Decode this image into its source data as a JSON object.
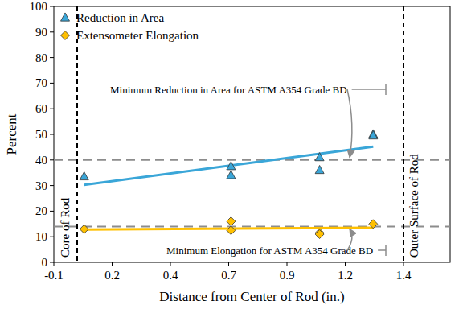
{
  "chart_data": {
    "type": "scatter",
    "x_label": "Distance from Center of Rod (in.)",
    "y_label": "Percent",
    "xlim": [
      -0.1,
      1.6
    ],
    "ylim": [
      0,
      100
    ],
    "xticks": [
      {
        "value": -0.1,
        "label": "-0.1"
      },
      {
        "value": 0.15,
        "label": "0.2"
      },
      {
        "value": 0.4,
        "label": "0.4"
      },
      {
        "value": 0.65,
        "label": "0.7"
      },
      {
        "value": 0.9,
        "label": "0.9"
      },
      {
        "value": 1.15,
        "label": "1.2"
      },
      {
        "value": 1.4,
        "label": "1.4"
      }
    ],
    "yticks": [
      0,
      10,
      20,
      30,
      40,
      50,
      60,
      70,
      80,
      90,
      100
    ],
    "grid": false,
    "legend": "upper left",
    "series": [
      {
        "name": "Reduction in Area",
        "color": "#3aa6d8",
        "marker": "triangle",
        "x": [
          0.03,
          0.66,
          0.66,
          1.04,
          1.04,
          1.27,
          1.27
        ],
        "values": [
          33.5,
          37.5,
          34,
          41,
          36,
          50,
          49.5
        ],
        "trend": {
          "x": [
            0.03,
            1.27
          ],
          "values": [
            30.3,
            45.2
          ]
        }
      },
      {
        "name": "Extensometer Elongation",
        "color": "#ffc000",
        "marker": "diamond",
        "x": [
          0.03,
          0.66,
          0.66,
          1.04,
          1.04,
          1.27
        ],
        "values": [
          13,
          16,
          12.5,
          11.5,
          11,
          15
        ],
        "trend": {
          "x": [
            0.03,
            1.27
          ],
          "values": [
            12.8,
            13.5
          ]
        }
      }
    ],
    "reference_lines": [
      {
        "value": 40,
        "label": "Minimum Reduction in Area for ASTM A354 Grade BD"
      },
      {
        "value": 14,
        "label": "Minimum Elongation for ASTM A354 Grade BD"
      }
    ],
    "vertical_lines": [
      {
        "value": 0,
        "label": "Core of Rod"
      },
      {
        "value": 1.4,
        "label": "Outer Surface of Rod"
      }
    ]
  }
}
